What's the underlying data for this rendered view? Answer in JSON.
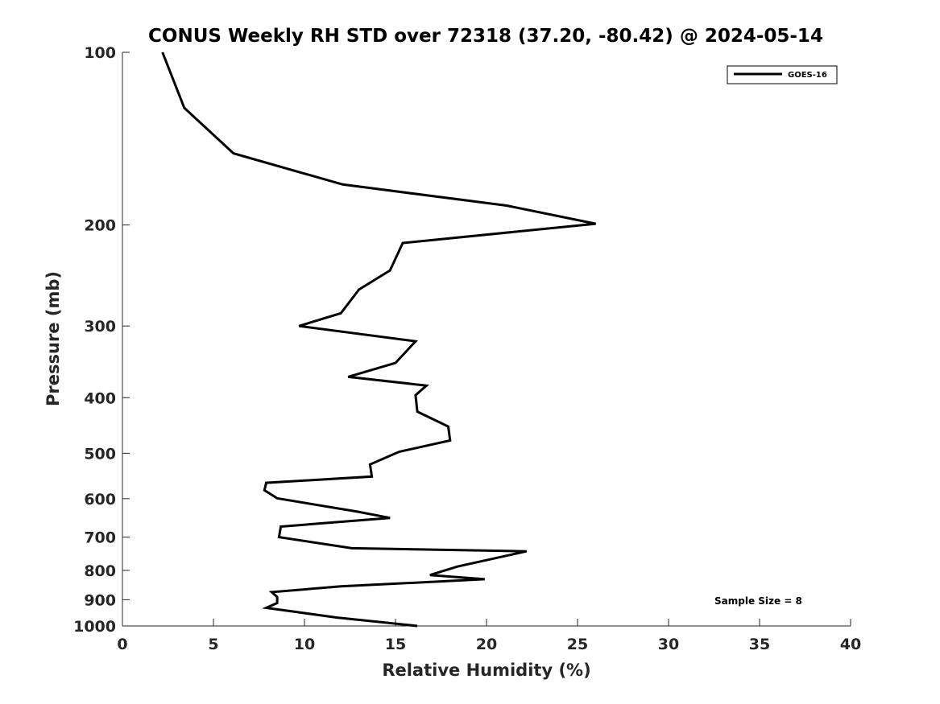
{
  "chart_data": {
    "type": "line",
    "title": "CONUS Weekly RH STD over 72318 (37.20, -80.42) @ 2024-05-14",
    "xlabel": "Relative Humidity (%)",
    "ylabel": "Pressure (mb)",
    "xlim": [
      0,
      40
    ],
    "ylim": [
      1000,
      100
    ],
    "yscale": "log",
    "y_reversed": true,
    "xticks": [
      "0",
      "5",
      "10",
      "15",
      "20",
      "25",
      "30",
      "35",
      "40"
    ],
    "yticks": [
      "100",
      "200",
      "300",
      "400",
      "500",
      "600",
      "700",
      "800",
      "900",
      "1000"
    ],
    "grid": false,
    "legend_position": "top-right",
    "color": "#000000",
    "annotation": "Sample Size = 8",
    "series": [
      {
        "name": "GOES-16",
        "x": [
          2.2,
          3.4,
          6.1,
          12.1,
          21.1,
          26.0,
          15.4,
          14.7,
          13.0,
          12.0,
          9.7,
          16.1,
          15.0,
          12.4,
          16.7,
          16.1,
          16.2,
          17.9,
          18.0,
          15.2,
          13.6,
          13.7,
          7.9,
          7.8,
          8.5,
          12.9,
          14.7,
          8.7,
          8.6,
          12.6,
          22.2,
          20.4,
          18.4,
          16.9,
          19.9,
          12.0,
          8.2,
          8.5,
          8.5,
          7.9,
          11.8,
          16.2
        ],
        "y": [
          100,
          125,
          150,
          170,
          185,
          199,
          215,
          240,
          259,
          285,
          300,
          319,
          348,
          368,
          381,
          396,
          423,
          449,
          475,
          497,
          523,
          549,
          563,
          580,
          599,
          632,
          648,
          671,
          700,
          732,
          741,
          763,
          788,
          815,
          829,
          853,
          873,
          890,
          912,
          930,
          967,
          1000
        ]
      }
    ]
  }
}
